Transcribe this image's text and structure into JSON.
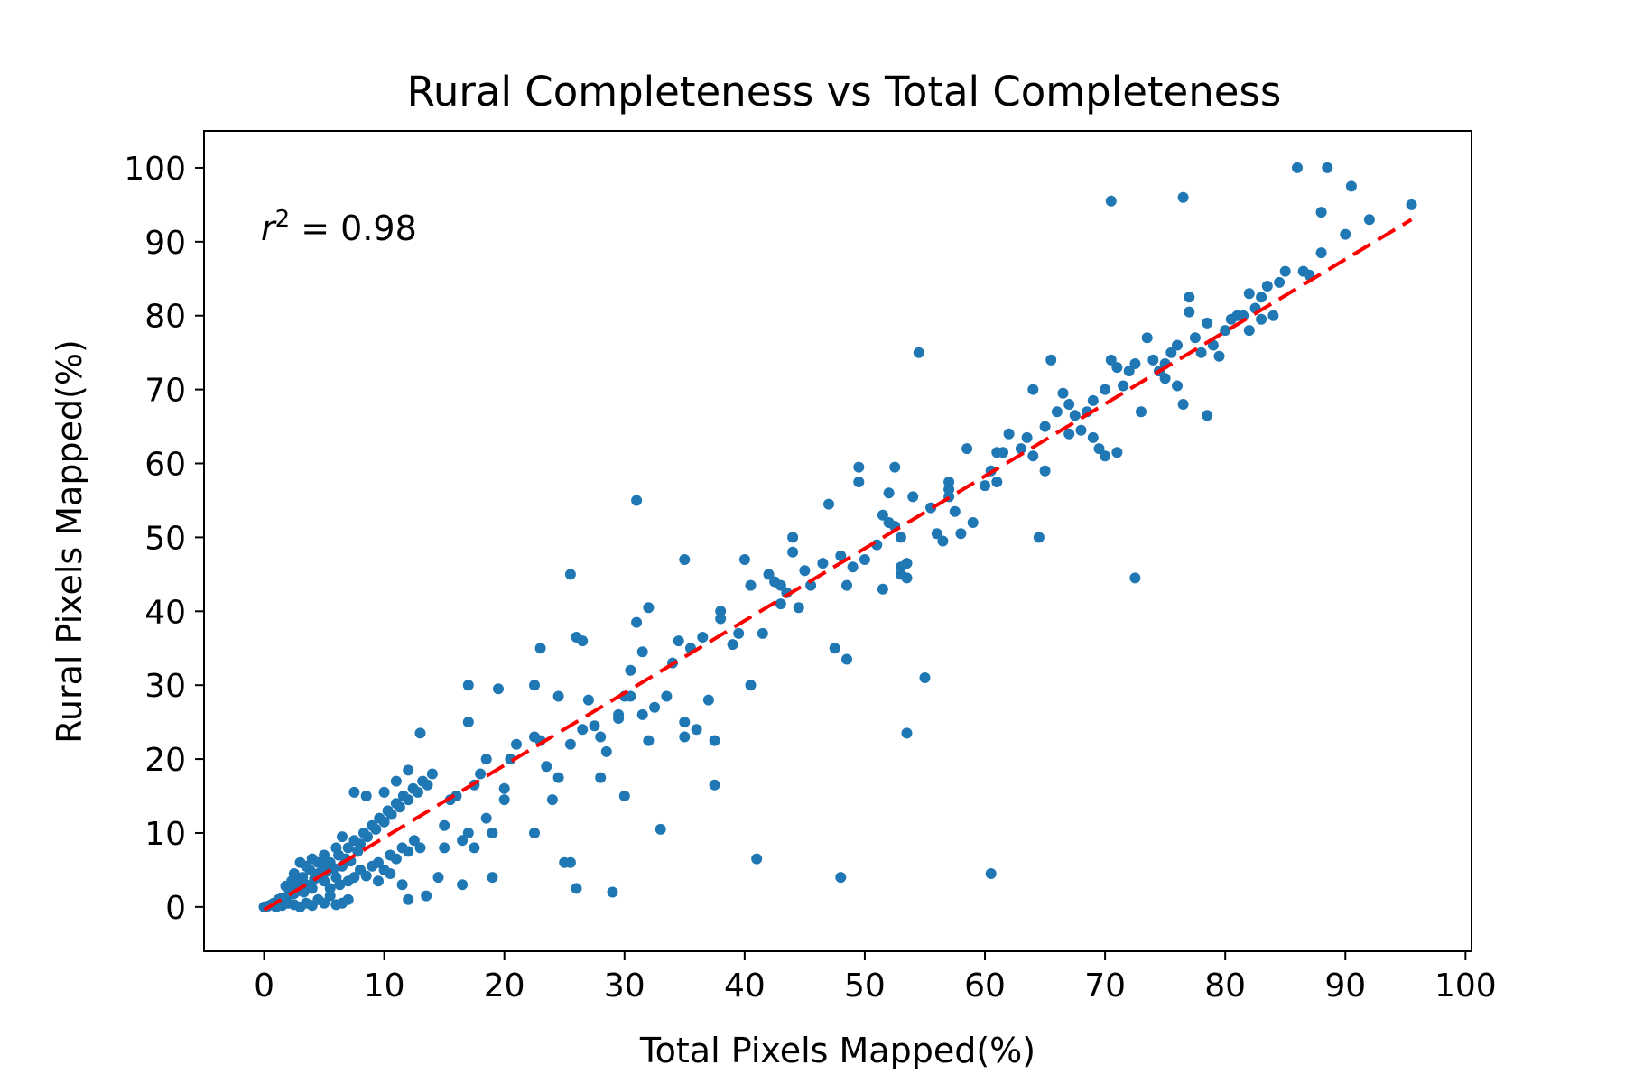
{
  "chart_data": {
    "type": "scatter",
    "title": "Rural Completeness vs Total Completeness",
    "xlabel": "Total Pixels Mapped(%)",
    "ylabel": "Rural Pixels Mapped(%)",
    "xlim": [
      -5,
      100.5
    ],
    "ylim": [
      -6,
      105
    ],
    "xticks": [
      0,
      10,
      20,
      30,
      40,
      50,
      60,
      70,
      80,
      90,
      100
    ],
    "yticks": [
      0,
      10,
      20,
      30,
      40,
      50,
      60,
      70,
      80,
      90,
      100
    ],
    "grid": false,
    "annotation": {
      "symbol": "r",
      "sup": "2",
      "text": " = 0.98"
    },
    "series": [
      {
        "type": "scatter",
        "color": "#1f77b4",
        "points": [
          [
            0,
            0
          ],
          [
            0.3,
            0.1
          ],
          [
            0.6,
            0.3
          ],
          [
            0.8,
            0.5
          ],
          [
            1.0,
            0.6
          ],
          [
            1.2,
            1.0
          ],
          [
            1.5,
            1.2
          ],
          [
            1.7,
            0.8
          ],
          [
            2.0,
            1.5
          ],
          [
            2.2,
            2.5
          ],
          [
            2.5,
            1.8
          ],
          [
            2.8,
            3.2
          ],
          [
            3.0,
            2.2
          ],
          [
            3.2,
            4.0
          ],
          [
            3.5,
            3.0
          ],
          [
            3.8,
            5.0
          ],
          [
            4.0,
            2.5
          ],
          [
            4.2,
            3.8
          ],
          [
            4.5,
            4.5
          ],
          [
            4.8,
            5.8
          ],
          [
            5.0,
            3.5
          ],
          [
            5.2,
            4.8
          ],
          [
            5.5,
            6.0
          ],
          [
            5.8,
            5.2
          ],
          [
            6.0,
            4.0
          ],
          [
            6.2,
            7.0
          ],
          [
            6.5,
            5.5
          ],
          [
            6.8,
            6.5
          ],
          [
            7.0,
            8.0
          ],
          [
            7.2,
            6.2
          ],
          [
            7.5,
            9.0
          ],
          [
            7.8,
            7.5
          ],
          [
            8.0,
            8.5
          ],
          [
            8.3,
            10.0
          ],
          [
            8.6,
            9.5
          ],
          [
            9.0,
            11.0
          ],
          [
            9.3,
            10.5
          ],
          [
            9.6,
            12.0
          ],
          [
            10.0,
            11.5
          ],
          [
            10.3,
            13.0
          ],
          [
            10.6,
            12.5
          ],
          [
            11.0,
            14.0
          ],
          [
            11.3,
            13.5
          ],
          [
            11.6,
            15.0
          ],
          [
            12.0,
            14.5
          ],
          [
            12.4,
            16.0
          ],
          [
            12.8,
            15.5
          ],
          [
            13.2,
            17.0
          ],
          [
            13.6,
            16.5
          ],
          [
            14.0,
            18.0
          ],
          [
            1.0,
            0.0
          ],
          [
            1.5,
            0.2
          ],
          [
            2.0,
            0.5
          ],
          [
            2.5,
            0.3
          ],
          [
            3.0,
            0.0
          ],
          [
            3.5,
            0.5
          ],
          [
            4.0,
            0.2
          ],
          [
            4.5,
            1.0
          ],
          [
            5.0,
            0.5
          ],
          [
            5.5,
            1.5
          ],
          [
            6.0,
            0.3
          ],
          [
            6.5,
            0.5
          ],
          [
            7.0,
            1.0
          ],
          [
            5.5,
            2.5
          ],
          [
            6.3,
            3.0
          ],
          [
            7.0,
            3.5
          ],
          [
            7.5,
            4.0
          ],
          [
            8.0,
            5.0
          ],
          [
            8.5,
            4.2
          ],
          [
            9.0,
            5.5
          ],
          [
            9.5,
            6.0
          ],
          [
            10.0,
            5.0
          ],
          [
            10.5,
            7.0
          ],
          [
            11.0,
            6.5
          ],
          [
            11.5,
            8.0
          ],
          [
            12.0,
            7.5
          ],
          [
            12.5,
            9.0
          ],
          [
            13.0,
            8.0
          ],
          [
            13.5,
            1.5
          ],
          [
            12.0,
            1.0
          ],
          [
            13.0,
            23.5
          ],
          [
            12.0,
            18.5
          ],
          [
            11.0,
            17.0
          ],
          [
            10.0,
            15.5
          ],
          [
            8.5,
            15.0
          ],
          [
            7.5,
            15.5
          ],
          [
            11.5,
            3.0
          ],
          [
            10.5,
            4.5
          ],
          [
            9.5,
            3.5
          ],
          [
            3.0,
            6.0
          ],
          [
            2.5,
            4.5
          ],
          [
            3.5,
            5.5
          ],
          [
            4.0,
            6.5
          ],
          [
            4.5,
            6.0
          ],
          [
            5.0,
            7.0
          ],
          [
            6.0,
            8.0
          ],
          [
            6.5,
            9.5
          ],
          [
            1.8,
            2.8
          ],
          [
            2.3,
            3.5
          ],
          [
            3.3,
            2.0
          ],
          [
            15.0,
            11.0
          ],
          [
            15.5,
            14.5
          ],
          [
            16.0,
            15.0
          ],
          [
            16.5,
            9.0
          ],
          [
            17.0,
            10.0
          ],
          [
            17.0,
            25.0
          ],
          [
            17.0,
            30.0
          ],
          [
            17.5,
            16.5
          ],
          [
            18.0,
            18.0
          ],
          [
            18.5,
            20.0
          ],
          [
            18.5,
            12.0
          ],
          [
            17.5,
            8.0
          ],
          [
            16.5,
            3.0
          ],
          [
            14.5,
            4.0
          ],
          [
            15.0,
            8.0
          ],
          [
            19.0,
            4.0
          ],
          [
            19.5,
            29.5
          ],
          [
            20.0,
            16.0
          ],
          [
            20.5,
            20.0
          ],
          [
            21.0,
            22.0
          ],
          [
            19.0,
            10.0
          ],
          [
            20.0,
            14.5
          ],
          [
            22.5,
            23.0
          ],
          [
            22.5,
            30.0
          ],
          [
            22.5,
            10.0
          ],
          [
            23.0,
            22.5
          ],
          [
            23.0,
            35.0
          ],
          [
            23.5,
            19.0
          ],
          [
            24.0,
            14.5
          ],
          [
            24.5,
            17.5
          ],
          [
            24.5,
            28.5
          ],
          [
            25.0,
            6.0
          ],
          [
            25.5,
            6.0
          ],
          [
            25.5,
            45.0
          ],
          [
            25.5,
            22.0
          ],
          [
            26.0,
            36.5
          ],
          [
            26.0,
            2.5
          ],
          [
            26.5,
            24.0
          ],
          [
            26.5,
            36.0
          ],
          [
            27.0,
            28.0
          ],
          [
            27.5,
            24.5
          ],
          [
            28.0,
            23.0
          ],
          [
            28.0,
            17.5
          ],
          [
            28.5,
            21.0
          ],
          [
            29.0,
            2.0
          ],
          [
            29.5,
            26.0
          ],
          [
            29.5,
            25.5
          ],
          [
            30.0,
            28.5
          ],
          [
            30.0,
            15.0
          ],
          [
            30.5,
            28.5
          ],
          [
            30.5,
            32.0
          ],
          [
            31.0,
            38.5
          ],
          [
            31.0,
            55.0
          ],
          [
            31.5,
            34.5
          ],
          [
            31.5,
            26.0
          ],
          [
            32.0,
            22.5
          ],
          [
            32.0,
            40.5
          ],
          [
            32.5,
            27.0
          ],
          [
            33.0,
            10.5
          ],
          [
            33.5,
            28.5
          ],
          [
            34.0,
            33.0
          ],
          [
            34.5,
            36.0
          ],
          [
            35.0,
            23.0
          ],
          [
            35.0,
            25.0
          ],
          [
            35.0,
            47.0
          ],
          [
            35.5,
            35.0
          ],
          [
            36.0,
            24.0
          ],
          [
            36.5,
            36.5
          ],
          [
            37.0,
            28.0
          ],
          [
            37.5,
            22.5
          ],
          [
            37.5,
            16.5
          ],
          [
            38.0,
            40.0
          ],
          [
            38.0,
            39.0
          ],
          [
            39.0,
            35.5
          ],
          [
            39.5,
            37.0
          ],
          [
            40.0,
            47.0
          ],
          [
            40.5,
            30.0
          ],
          [
            40.5,
            43.5
          ],
          [
            41.0,
            6.5
          ],
          [
            41.5,
            37.0
          ],
          [
            42.0,
            45.0
          ],
          [
            42.5,
            44.0
          ],
          [
            43.0,
            41.0
          ],
          [
            43.0,
            43.5
          ],
          [
            43.5,
            42.5
          ],
          [
            44.0,
            50.0
          ],
          [
            44.0,
            48.0
          ],
          [
            44.5,
            40.5
          ],
          [
            45.0,
            45.5
          ],
          [
            45.5,
            43.5
          ],
          [
            46.5,
            46.5
          ],
          [
            47.0,
            54.5
          ],
          [
            47.5,
            35.0
          ],
          [
            48.0,
            47.5
          ],
          [
            48.0,
            4.0
          ],
          [
            48.5,
            33.5
          ],
          [
            48.5,
            43.5
          ],
          [
            49.0,
            46.0
          ],
          [
            49.5,
            57.5
          ],
          [
            49.5,
            59.5
          ],
          [
            50.0,
            47.0
          ],
          [
            51.0,
            49.0
          ],
          [
            51.5,
            53.0
          ],
          [
            51.5,
            43.0
          ],
          [
            52.0,
            56.0
          ],
          [
            52.0,
            52.0
          ],
          [
            52.5,
            59.5
          ],
          [
            52.5,
            51.5
          ],
          [
            53.0,
            46.0
          ],
          [
            53.0,
            45.0
          ],
          [
            53.0,
            50.0
          ],
          [
            53.5,
            46.5
          ],
          [
            53.5,
            44.5
          ],
          [
            53.5,
            23.5
          ],
          [
            54.0,
            55.5
          ],
          [
            54.5,
            75.0
          ],
          [
            55.0,
            31.0
          ],
          [
            55.5,
            54.0
          ],
          [
            56.0,
            50.5
          ],
          [
            56.5,
            49.5
          ],
          [
            57.0,
            55.5
          ],
          [
            57.0,
            56.5
          ],
          [
            57.0,
            57.5
          ],
          [
            57.5,
            53.5
          ],
          [
            58.0,
            50.5
          ],
          [
            58.5,
            62.0
          ],
          [
            59.0,
            52.0
          ],
          [
            60.0,
            57.0
          ],
          [
            60.5,
            59.0
          ],
          [
            60.5,
            4.5
          ],
          [
            61.0,
            61.5
          ],
          [
            61.0,
            57.5
          ],
          [
            61.5,
            61.5
          ],
          [
            62.0,
            64.0
          ],
          [
            63.0,
            62.0
          ],
          [
            63.5,
            63.5
          ],
          [
            64.0,
            70.0
          ],
          [
            64.0,
            61.0
          ],
          [
            64.5,
            50.0
          ],
          [
            65.0,
            65.0
          ],
          [
            65.0,
            59.0
          ],
          [
            65.5,
            74.0
          ],
          [
            66.0,
            67.0
          ],
          [
            66.5,
            69.5
          ],
          [
            67.0,
            68.0
          ],
          [
            67.0,
            64.0
          ],
          [
            67.5,
            66.5
          ],
          [
            68.0,
            64.5
          ],
          [
            68.5,
            67.0
          ],
          [
            69.0,
            63.5
          ],
          [
            69.0,
            68.5
          ],
          [
            69.5,
            62.0
          ],
          [
            70.0,
            70.0
          ],
          [
            70.0,
            61.0
          ],
          [
            70.5,
            74.0
          ],
          [
            70.5,
            95.5
          ],
          [
            71.0,
            73.0
          ],
          [
            71.0,
            61.5
          ],
          [
            71.5,
            70.5
          ],
          [
            72.0,
            72.5
          ],
          [
            72.5,
            44.5
          ],
          [
            72.5,
            73.5
          ],
          [
            73.0,
            67.0
          ],
          [
            73.5,
            77.0
          ],
          [
            74.0,
            74.0
          ],
          [
            74.5,
            72.5
          ],
          [
            75.0,
            73.5
          ],
          [
            75.0,
            71.5
          ],
          [
            75.5,
            75.0
          ],
          [
            76.0,
            76.0
          ],
          [
            76.0,
            70.5
          ],
          [
            76.5,
            96.0
          ],
          [
            76.5,
            68.0
          ],
          [
            77.0,
            82.5
          ],
          [
            77.0,
            80.5
          ],
          [
            77.5,
            77.0
          ],
          [
            78.0,
            75.0
          ],
          [
            78.5,
            79.0
          ],
          [
            78.5,
            66.5
          ],
          [
            79.0,
            76.0
          ],
          [
            79.5,
            74.5
          ],
          [
            80.0,
            78.0
          ],
          [
            80.5,
            79.5
          ],
          [
            81.0,
            80.0
          ],
          [
            81.5,
            80.0
          ],
          [
            82.0,
            78.0
          ],
          [
            82.0,
            83.0
          ],
          [
            82.5,
            81.0
          ],
          [
            83.0,
            82.5
          ],
          [
            83.0,
            79.5
          ],
          [
            83.5,
            84.0
          ],
          [
            84.0,
            80.0
          ],
          [
            84.5,
            84.5
          ],
          [
            85.0,
            86.0
          ],
          [
            86.0,
            100.0
          ],
          [
            86.5,
            86.0
          ],
          [
            87.0,
            85.5
          ],
          [
            88.0,
            94.0
          ],
          [
            88.0,
            88.5
          ],
          [
            88.5,
            100.0
          ],
          [
            90.0,
            91.0
          ],
          [
            90.5,
            97.5
          ],
          [
            92.0,
            93.0
          ],
          [
            95.5,
            95.0
          ]
        ]
      },
      {
        "type": "line",
        "color": "#ff0000",
        "start": [
          0,
          -0.4
        ],
        "end": [
          95.5,
          93.0
        ]
      }
    ]
  }
}
